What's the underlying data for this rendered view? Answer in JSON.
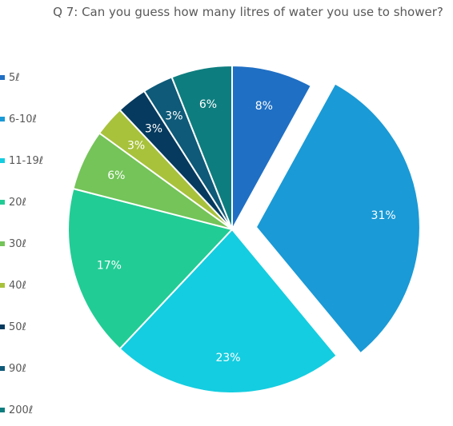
{
  "chart_data": {
    "type": "pie",
    "title": "Q 7: Can you guess how many litres of water you use to shower?",
    "categories": [
      "5ℓ",
      "6-10ℓ",
      "11-19ℓ",
      "20ℓ",
      "30ℓ",
      "40ℓ",
      "50ℓ",
      "90ℓ",
      "200ℓ"
    ],
    "values": [
      8,
      31,
      23,
      17,
      6,
      3,
      3,
      3,
      6
    ],
    "value_labels": [
      "8%",
      "31%",
      "23%",
      "17%",
      "6%",
      "3%",
      "3%",
      "3%",
      "6%"
    ],
    "colors": [
      "#1f6fc4",
      "#1a9ad6",
      "#14cde0",
      "#22cc95",
      "#74c459",
      "#a8c23c",
      "#063a5e",
      "#0e5a78",
      "#0e7d7f"
    ],
    "exploded": "6-10ℓ",
    "legend_position": "left"
  }
}
